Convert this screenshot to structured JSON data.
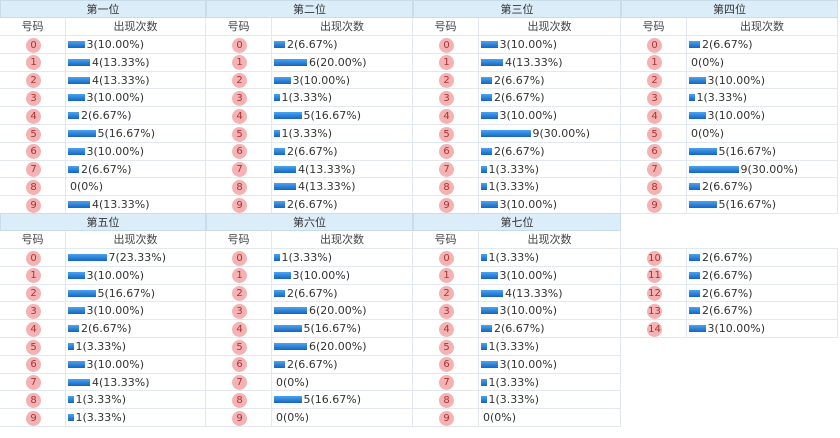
{
  "columns": [
    "号码",
    "出现次数"
  ],
  "panels": [
    {
      "title": "第一位",
      "rows": [
        {
          "num": "0",
          "count": 3,
          "label": "3(10.00%)"
        },
        {
          "num": "1",
          "count": 4,
          "label": "4(13.33%)"
        },
        {
          "num": "2",
          "count": 4,
          "label": "4(13.33%)"
        },
        {
          "num": "3",
          "count": 3,
          "label": "3(10.00%)"
        },
        {
          "num": "4",
          "count": 2,
          "label": "2(6.67%)"
        },
        {
          "num": "5",
          "count": 5,
          "label": "5(16.67%)"
        },
        {
          "num": "6",
          "count": 3,
          "label": "3(10.00%)"
        },
        {
          "num": "7",
          "count": 2,
          "label": "2(6.67%)"
        },
        {
          "num": "8",
          "count": 0,
          "label": "0(0%)"
        },
        {
          "num": "9",
          "count": 4,
          "label": "4(13.33%)"
        }
      ]
    },
    {
      "title": "第二位",
      "rows": [
        {
          "num": "0",
          "count": 2,
          "label": "2(6.67%)"
        },
        {
          "num": "1",
          "count": 6,
          "label": "6(20.00%)"
        },
        {
          "num": "2",
          "count": 3,
          "label": "3(10.00%)"
        },
        {
          "num": "3",
          "count": 1,
          "label": "1(3.33%)"
        },
        {
          "num": "4",
          "count": 5,
          "label": "5(16.67%)"
        },
        {
          "num": "5",
          "count": 1,
          "label": "1(3.33%)"
        },
        {
          "num": "6",
          "count": 2,
          "label": "2(6.67%)"
        },
        {
          "num": "7",
          "count": 4,
          "label": "4(13.33%)"
        },
        {
          "num": "8",
          "count": 4,
          "label": "4(13.33%)"
        },
        {
          "num": "9",
          "count": 2,
          "label": "2(6.67%)"
        }
      ]
    },
    {
      "title": "第三位",
      "rows": [
        {
          "num": "0",
          "count": 3,
          "label": "3(10.00%)"
        },
        {
          "num": "1",
          "count": 4,
          "label": "4(13.33%)"
        },
        {
          "num": "2",
          "count": 2,
          "label": "2(6.67%)"
        },
        {
          "num": "3",
          "count": 2,
          "label": "2(6.67%)"
        },
        {
          "num": "4",
          "count": 3,
          "label": "3(10.00%)"
        },
        {
          "num": "5",
          "count": 9,
          "label": "9(30.00%)"
        },
        {
          "num": "6",
          "count": 2,
          "label": "2(6.67%)"
        },
        {
          "num": "7",
          "count": 1,
          "label": "1(3.33%)"
        },
        {
          "num": "8",
          "count": 1,
          "label": "1(3.33%)"
        },
        {
          "num": "9",
          "count": 3,
          "label": "3(10.00%)"
        }
      ]
    },
    {
      "title": "第四位",
      "rows": [
        {
          "num": "0",
          "count": 2,
          "label": "2(6.67%)"
        },
        {
          "num": "1",
          "count": 0,
          "label": "0(0%)"
        },
        {
          "num": "2",
          "count": 3,
          "label": "3(10.00%)"
        },
        {
          "num": "3",
          "count": 1,
          "label": "1(3.33%)"
        },
        {
          "num": "4",
          "count": 3,
          "label": "3(10.00%)"
        },
        {
          "num": "5",
          "count": 0,
          "label": "0(0%)"
        },
        {
          "num": "6",
          "count": 5,
          "label": "5(16.67%)"
        },
        {
          "num": "7",
          "count": 9,
          "label": "9(30.00%)"
        },
        {
          "num": "8",
          "count": 2,
          "label": "2(6.67%)"
        },
        {
          "num": "9",
          "count": 5,
          "label": "5(16.67%)"
        }
      ]
    },
    {
      "title": "第五位",
      "rows": [
        {
          "num": "0",
          "count": 7,
          "label": "7(23.33%)"
        },
        {
          "num": "1",
          "count": 3,
          "label": "3(10.00%)"
        },
        {
          "num": "2",
          "count": 5,
          "label": "5(16.67%)"
        },
        {
          "num": "3",
          "count": 3,
          "label": "3(10.00%)"
        },
        {
          "num": "4",
          "count": 2,
          "label": "2(6.67%)"
        },
        {
          "num": "5",
          "count": 1,
          "label": "1(3.33%)"
        },
        {
          "num": "6",
          "count": 3,
          "label": "3(10.00%)"
        },
        {
          "num": "7",
          "count": 4,
          "label": "4(13.33%)"
        },
        {
          "num": "8",
          "count": 1,
          "label": "1(3.33%)"
        },
        {
          "num": "9",
          "count": 1,
          "label": "1(3.33%)"
        }
      ]
    },
    {
      "title": "第六位",
      "rows": [
        {
          "num": "0",
          "count": 1,
          "label": "1(3.33%)"
        },
        {
          "num": "1",
          "count": 3,
          "label": "3(10.00%)"
        },
        {
          "num": "2",
          "count": 2,
          "label": "2(6.67%)"
        },
        {
          "num": "3",
          "count": 6,
          "label": "6(20.00%)"
        },
        {
          "num": "4",
          "count": 5,
          "label": "5(16.67%)"
        },
        {
          "num": "5",
          "count": 6,
          "label": "6(20.00%)"
        },
        {
          "num": "6",
          "count": 2,
          "label": "2(6.67%)"
        },
        {
          "num": "7",
          "count": 0,
          "label": "0(0%)"
        },
        {
          "num": "8",
          "count": 5,
          "label": "5(16.67%)"
        },
        {
          "num": "9",
          "count": 0,
          "label": "0(0%)"
        }
      ]
    },
    {
      "title": "第七位",
      "rows": [
        {
          "num": "0",
          "count": 1,
          "label": "1(3.33%)"
        },
        {
          "num": "1",
          "count": 3,
          "label": "3(10.00%)"
        },
        {
          "num": "2",
          "count": 4,
          "label": "4(13.33%)"
        },
        {
          "num": "3",
          "count": 3,
          "label": "3(10.00%)"
        },
        {
          "num": "4",
          "count": 2,
          "label": "2(6.67%)"
        },
        {
          "num": "5",
          "count": 1,
          "label": "1(3.33%)"
        },
        {
          "num": "6",
          "count": 3,
          "label": "3(10.00%)"
        },
        {
          "num": "7",
          "count": 1,
          "label": "1(3.33%)"
        },
        {
          "num": "8",
          "count": 1,
          "label": "1(3.33%)"
        },
        {
          "num": "9",
          "count": 0,
          "label": "0(0%)"
        }
      ]
    },
    {
      "rows": [
        {
          "num": "10",
          "count": 2,
          "label": "2(6.67%)"
        },
        {
          "num": "11",
          "count": 2,
          "label": "2(6.67%)"
        },
        {
          "num": "12",
          "count": 2,
          "label": "2(6.67%)"
        },
        {
          "num": "13",
          "count": 2,
          "label": "2(6.67%)"
        },
        {
          "num": "14",
          "count": 3,
          "label": "3(10.00%)"
        }
      ]
    }
  ]
}
